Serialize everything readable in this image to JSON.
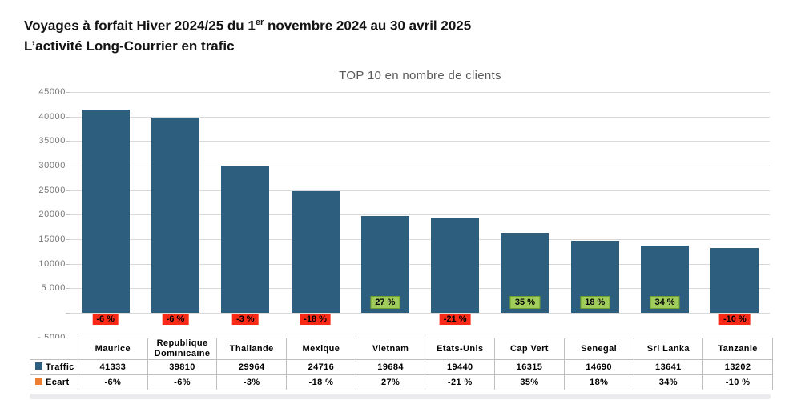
{
  "header": {
    "line1_prefix": "Voyages à forfait Hiver 2024/25 du 1",
    "line1_sup": "er",
    "line1_suffix": " novembre 2024 au 30 avril 2025",
    "line2": "L’activité Long-Courrier en trafic"
  },
  "chart_data": {
    "type": "bar",
    "title": "TOP 10 en nombre de clients",
    "categories": [
      "Maurice",
      "Republique Dominicaine",
      "Thailande",
      "Mexique",
      "Vietnam",
      "Etats-Unis",
      "Cap Vert",
      "Senegal",
      "Sri Lanka",
      "Tanzanie"
    ],
    "series": [
      {
        "name": "Traffic",
        "values": [
          41333,
          39810,
          29964,
          24716,
          19684,
          19440,
          16315,
          14690,
          13641,
          13202
        ]
      },
      {
        "name": "Ecart",
        "values_percent": [
          -6,
          -6,
          -3,
          -18,
          27,
          -21,
          35,
          18,
          34,
          -10
        ]
      }
    ],
    "bar_labels": [
      "-6 %",
      "-6 %",
      "-3 %",
      "-18 %",
      "27 %",
      "-21 %",
      "35 %",
      "18 %",
      "34 %",
      "-10 %"
    ],
    "ylim": [
      -5000,
      45000
    ],
    "ytick_step": 5000,
    "yticks": [
      {
        "value": 45000,
        "label": "45000"
      },
      {
        "value": 40000,
        "label": "40000"
      },
      {
        "value": 35000,
        "label": "35000"
      },
      {
        "value": 30000,
        "label": "30000"
      },
      {
        "value": 25000,
        "label": "25000"
      },
      {
        "value": 20000,
        "label": "20000"
      },
      {
        "value": 15000,
        "label": "15000"
      },
      {
        "value": 10000,
        "label": "10000"
      },
      {
        "value": 5000,
        "label": "5 000"
      },
      {
        "value": 0,
        "label": ""
      },
      {
        "value": -5000,
        "label": "- 5000"
      }
    ],
    "grid": true,
    "legend_position": "table-left"
  },
  "table": {
    "legend_rows": [
      {
        "label": "Traffic",
        "key_color": "#2d5e7e"
      },
      {
        "label": "Ecart",
        "key_color": "#ed7d31"
      }
    ],
    "traffic_display": [
      "41333",
      "39810",
      "29964",
      "24716",
      "19684",
      "19440",
      "16315",
      "14690",
      "13641",
      "13202"
    ],
    "ecart_display": [
      "-6%",
      "-6%",
      "-3%",
      "-18 %",
      "27%",
      "-21 %",
      "35%",
      "18%",
      "34%",
      "-10 %"
    ]
  },
  "colors": {
    "traffic_bar": "#2d5e7e",
    "ecart_key": "#ed7d31",
    "negative_label_bg": "#fb2a16",
    "positive_label_bg": "#a0cc5c",
    "positive_label_border": "#70a02f",
    "gridline": "#d9d9d9",
    "chart_title_text": "#595959"
  }
}
